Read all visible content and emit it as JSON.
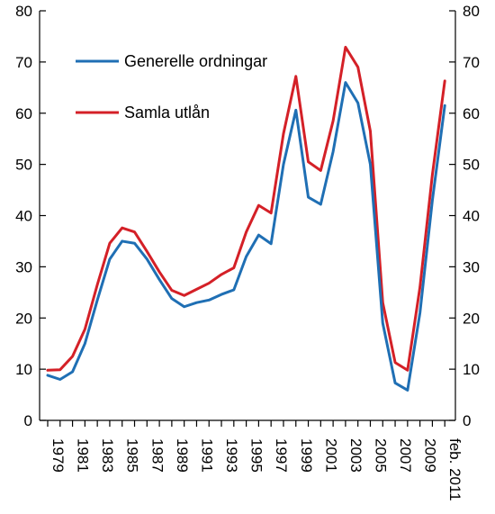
{
  "chart_data": {
    "type": "line",
    "title": "",
    "xlabel": "",
    "ylabel": "",
    "ylim": [
      0,
      80
    ],
    "yticks": [
      0,
      10,
      20,
      30,
      40,
      50,
      60,
      70,
      80
    ],
    "right_axis_mirrors_left": true,
    "grid": false,
    "legend_position": "top-left",
    "x": [
      "1979",
      "1980",
      "1981",
      "1982",
      "1983",
      "1984",
      "1985",
      "1986",
      "1987",
      "1988",
      "1989",
      "1990",
      "1991",
      "1992",
      "1993",
      "1994",
      "1995",
      "1996",
      "1997",
      "1998",
      "1999",
      "2000",
      "2001",
      "2002",
      "2003",
      "2004",
      "2005",
      "2006",
      "2007",
      "2008",
      "2009",
      "2010",
      "feb. 2011"
    ],
    "x_tick_labels": [
      "1979",
      "1981",
      "1983",
      "1985",
      "1987",
      "1989",
      "1991",
      "1993",
      "1995",
      "1997",
      "1999",
      "2001",
      "2003",
      "2005",
      "2007",
      "2009",
      "feb. 2011"
    ],
    "series": [
      {
        "name": "Generelle ordningar",
        "color": "#1f6fb4",
        "values": [
          8.8,
          8.0,
          9.5,
          15.0,
          23.5,
          31.5,
          35.0,
          34.6,
          31.5,
          27.5,
          23.8,
          22.2,
          23.0,
          23.5,
          24.6,
          25.5,
          32.0,
          36.2,
          34.5,
          50.0,
          60.6,
          43.6,
          42.2,
          52.5,
          66.0,
          62.0,
          50.0,
          19.0,
          7.3,
          5.9,
          21.0,
          43.0,
          61.5
        ]
      },
      {
        "name": "Samla utlån",
        "color": "#d42027",
        "values": [
          9.8,
          9.9,
          12.5,
          17.8,
          26.5,
          34.6,
          37.6,
          36.8,
          33.0,
          29.0,
          25.4,
          24.4,
          25.6,
          26.8,
          28.5,
          29.8,
          36.8,
          42.0,
          40.5,
          56.0,
          67.2,
          50.5,
          48.8,
          58.5,
          72.9,
          69.0,
          56.5,
          23.0,
          11.3,
          9.8,
          26.0,
          48.0,
          66.3
        ]
      }
    ]
  }
}
